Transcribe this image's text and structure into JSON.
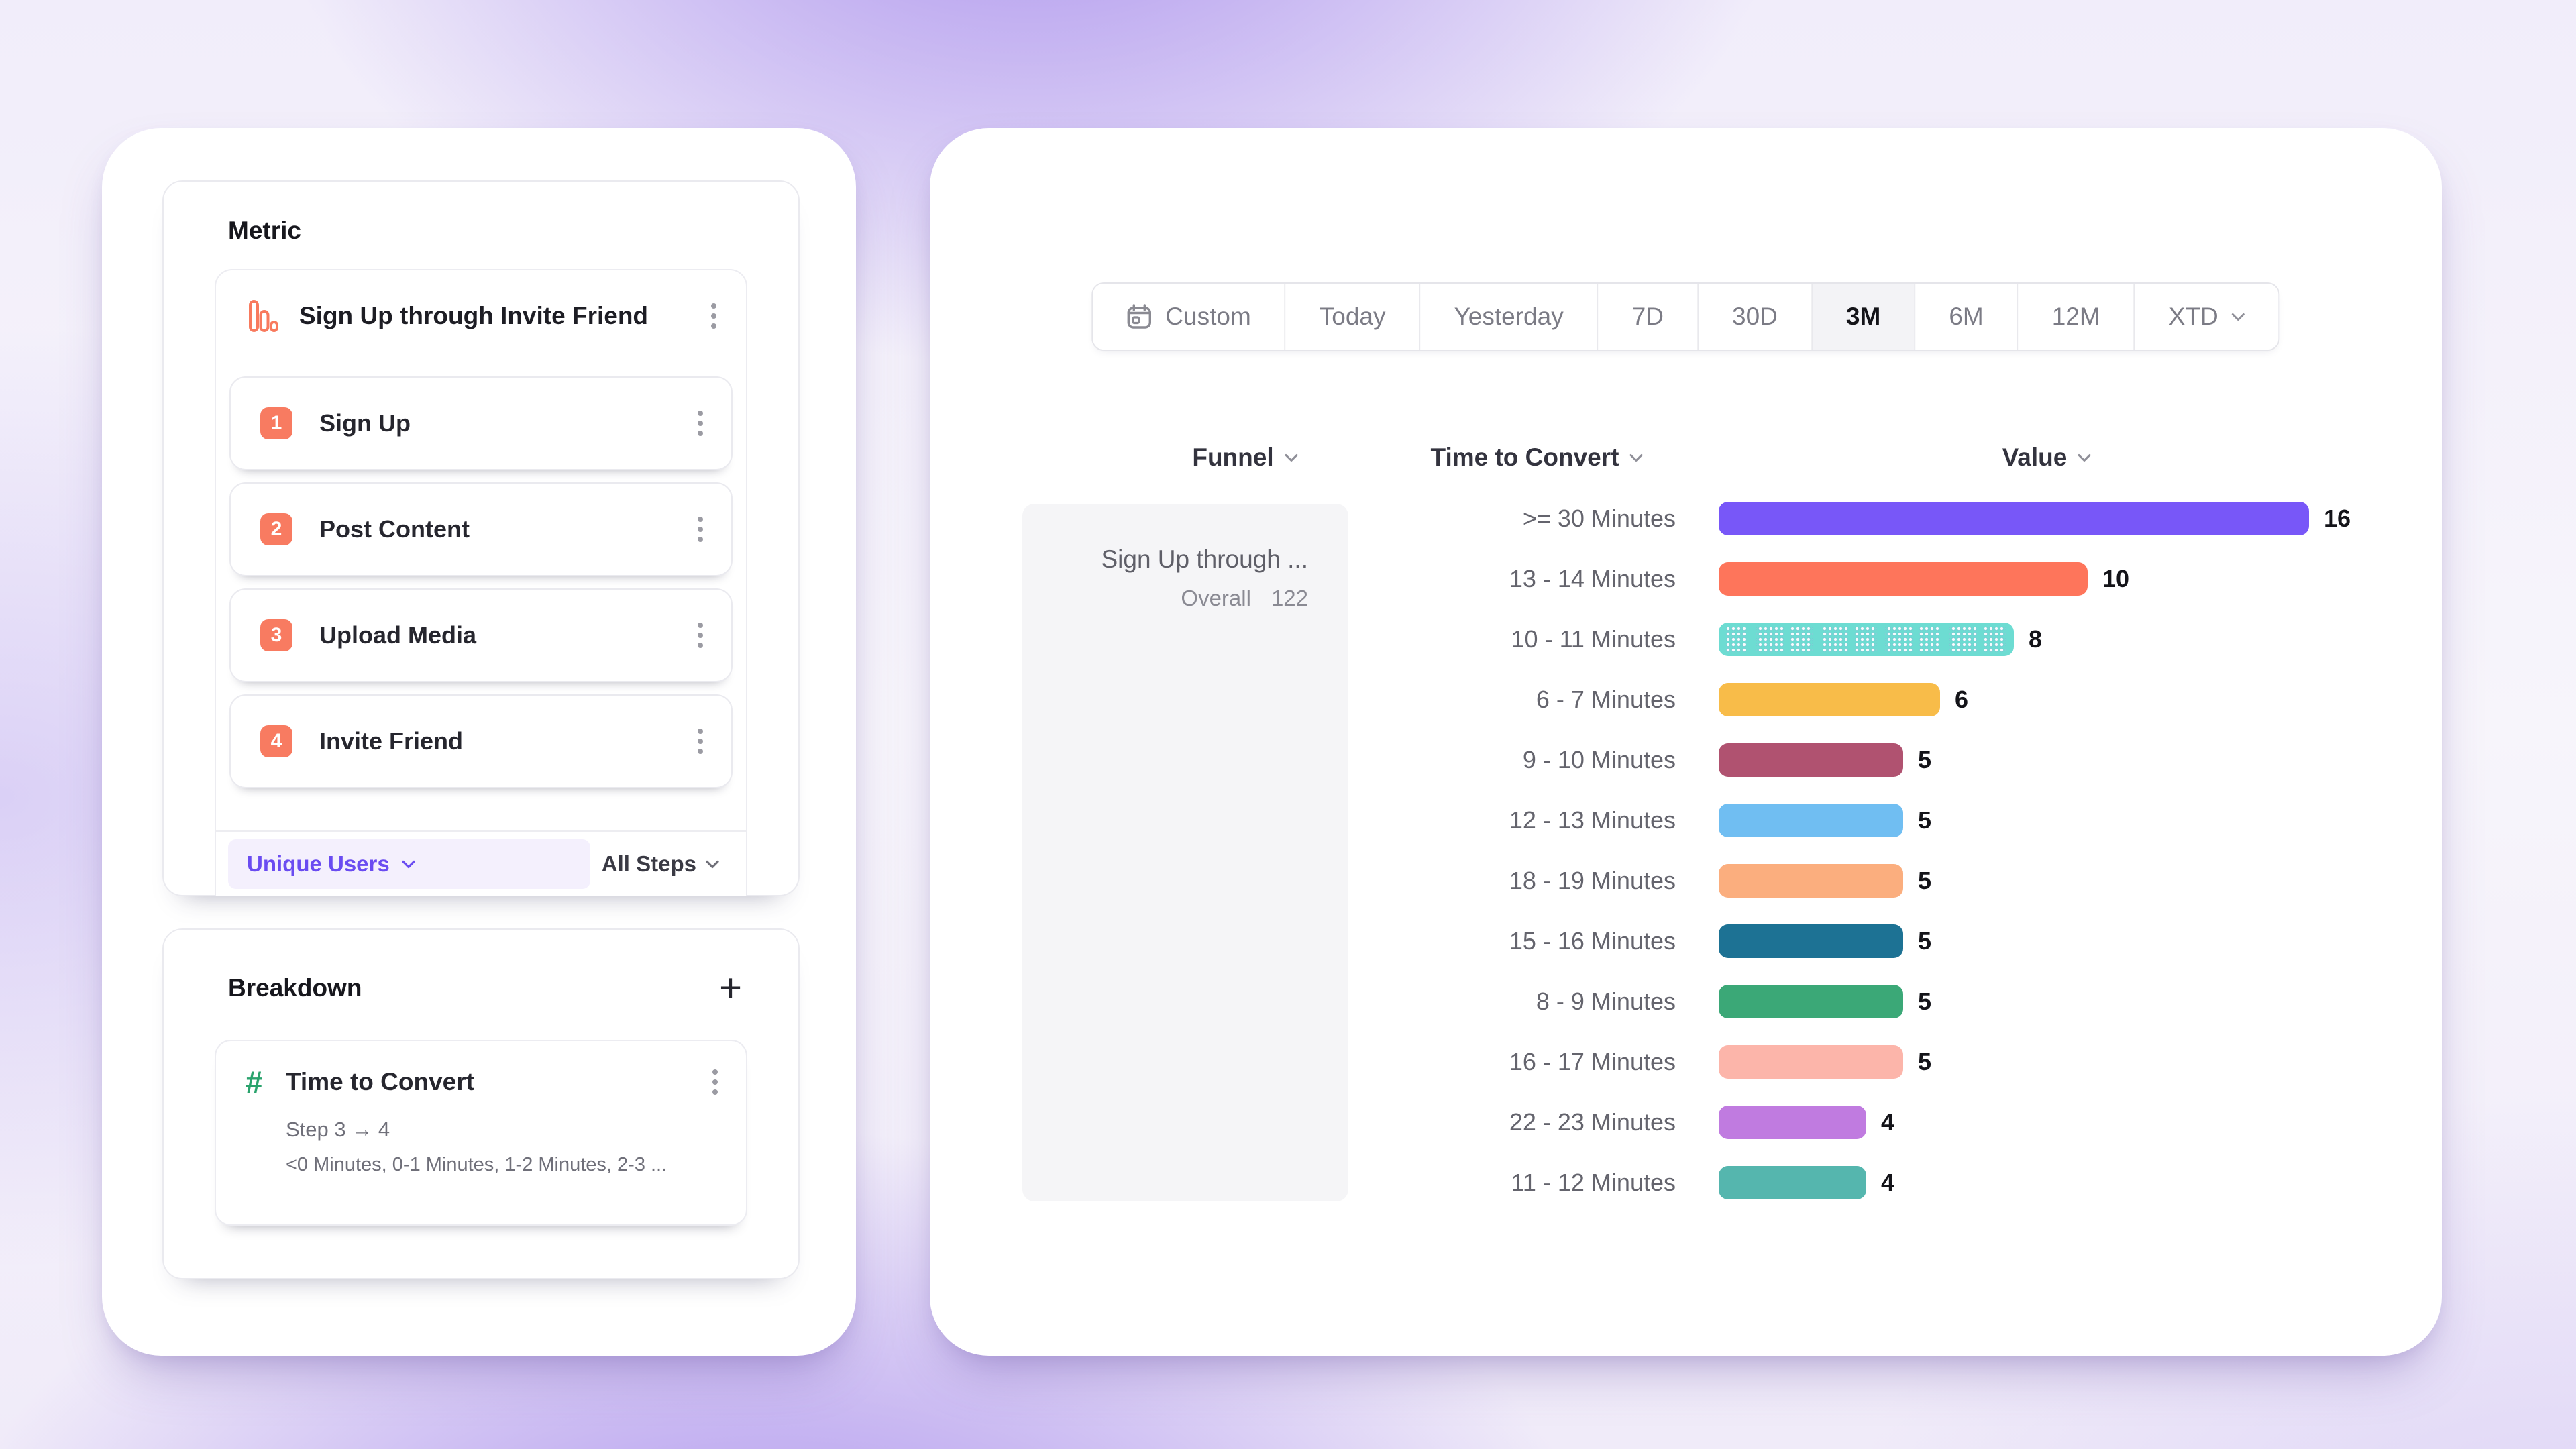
{
  "colors": {
    "accent_purple": "#6a4cf1",
    "badge_coral": "#f87b61",
    "hash_green": "#2aa36d",
    "funnel_cell_bg": "#f5f5f7",
    "selected_segment_bg": "#f3f3f6"
  },
  "left_panel": {
    "metric_card": {
      "title": "Metric",
      "funnel": {
        "title": "Sign Up through Invite Friend",
        "icon": "funnel-chart-icon",
        "steps": [
          {
            "num": "1",
            "label": "Sign Up"
          },
          {
            "num": "2",
            "label": "Post Content"
          },
          {
            "num": "3",
            "label": "Upload Media"
          },
          {
            "num": "4",
            "label": "Invite Friend"
          }
        ],
        "counting_label": "Unique Users",
        "steps_filter_label": "All Steps"
      }
    },
    "breakdown_card": {
      "title": "Breakdown",
      "add_label": "+",
      "item": {
        "icon": "hash-icon",
        "title": "Time to Convert",
        "subtitle": "Step 3 → 4",
        "values_preview": "<0 Minutes, 0-1 Minutes, 1-2 Minutes, 2-3 ..."
      }
    }
  },
  "right_panel": {
    "time_range": {
      "selected": "3M",
      "options": [
        {
          "label": "Custom",
          "icon": "calendar-icon"
        },
        {
          "label": "Today"
        },
        {
          "label": "Yesterday"
        },
        {
          "label": "7D"
        },
        {
          "label": "30D"
        },
        {
          "label": "3M",
          "selected": true
        },
        {
          "label": "6M"
        },
        {
          "label": "12M"
        },
        {
          "label": "XTD",
          "chevron": true
        }
      ]
    },
    "table": {
      "columns": [
        {
          "label": "Funnel"
        },
        {
          "label": "Time to Convert"
        },
        {
          "label": "Value"
        }
      ],
      "funnel_cell": {
        "title": "Sign Up through ...",
        "overall_label": "Overall",
        "overall_value": "122"
      }
    }
  },
  "chart_data": {
    "type": "bar",
    "orientation": "horizontal",
    "title": "Time to Convert breakdown of funnel Sign Up through Invite Friend",
    "xlabel": "Value",
    "ylabel": "Time to Convert",
    "xlim": [
      0,
      16
    ],
    "grid": false,
    "legend": false,
    "categories": [
      ">= 30 Minutes",
      "13 - 14 Minutes",
      "10 - 11 Minutes",
      "6 - 7 Minutes",
      "9 - 10 Minutes",
      "12 - 13 Minutes",
      "18 - 19 Minutes",
      "15 - 16 Minutes",
      "8 - 9 Minutes",
      "16 - 17 Minutes",
      "22 - 23 Minutes",
      "11 - 12 Minutes"
    ],
    "values": [
      16,
      10,
      8,
      6,
      5,
      5,
      5,
      5,
      5,
      5,
      4,
      4
    ],
    "bar_colors": [
      "#7857f8",
      "#fe755b",
      "#6ddcd2",
      "#f8bc49",
      "#b05270",
      "#70bef2",
      "#fbae7e",
      "#1d7294",
      "#3ba877",
      "#fcb5aa",
      "#c07be0",
      "#55b6ae"
    ],
    "bar_styles": [
      "solid",
      "solid",
      "dotted-pattern",
      "solid",
      "solid",
      "solid",
      "solid",
      "solid",
      "solid",
      "solid",
      "solid",
      "solid"
    ]
  }
}
